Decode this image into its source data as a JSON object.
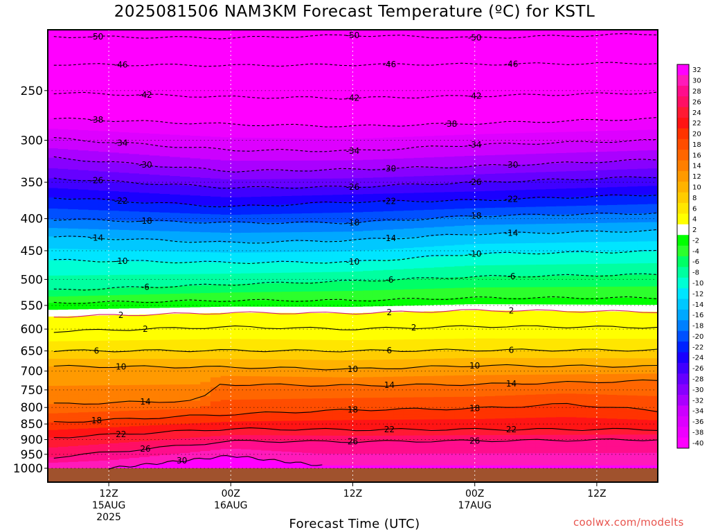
{
  "title": "2025081506 NAM3KM Forecast Temperature (ºC) for KSTL",
  "credit": "coolwx.com/modelts",
  "chart_data": {
    "type": "heatmap",
    "xlabel": "Forecast Time (UTC)",
    "ylabel": "",
    "x_range": [
      "2025-08-15 06Z",
      "2025-08-17 18Z"
    ],
    "y_range_hpa": [
      1000,
      200
    ],
    "y_scale": "log-pressure",
    "grid": true,
    "y_ticks": [
      250,
      300,
      350,
      400,
      450,
      500,
      550,
      600,
      650,
      700,
      750,
      800,
      850,
      900,
      950,
      1000
    ],
    "x_ticks": [
      {
        "time": "2025-08-15 12Z",
        "lines": [
          "12Z",
          "15AUG",
          "2025"
        ]
      },
      {
        "time": "2025-08-16 00Z",
        "lines": [
          "00Z",
          "16AUG"
        ]
      },
      {
        "time": "2025-08-16 12Z",
        "lines": [
          "12Z"
        ]
      },
      {
        "time": "2025-08-17 00Z",
        "lines": [
          "00Z",
          "17AUG"
        ]
      },
      {
        "time": "2025-08-17 12Z",
        "lines": [
          "12Z"
        ]
      }
    ],
    "colorbar_labels": [
      "32",
      "30",
      "28",
      "26",
      "24",
      "22",
      "20",
      "18",
      "16",
      "14",
      "12",
      "10",
      "8",
      "6",
      "4",
      "2",
      "-2",
      "-4",
      "-6",
      "-8",
      "-10",
      "-12",
      "-14",
      "-16",
      "-18",
      "-20",
      "-22",
      "-24",
      "-26",
      "-28",
      "-30",
      "-32",
      "-34",
      "-36",
      "-38",
      "-40"
    ],
    "colorbar_colors": [
      "#ff00ff",
      "#ff1aba",
      "#ff0d8c",
      "#ff0f64",
      "#ff1a33",
      "#ff1414",
      "#ff3300",
      "#ff4d00",
      "#ff6600",
      "#ff7f00",
      "#ff9a00",
      "#ffb300",
      "#ffcc00",
      "#ffe600",
      "#ffff00",
      "#ffffff",
      "#00ff00",
      "#2cff2c",
      "#00ff66",
      "#00ffa0",
      "#00ffd4",
      "#00e5ff",
      "#00c8ff",
      "#00a8ff",
      "#0080ff",
      "#0050ff",
      "#0022ff",
      "#1a00ff",
      "#4000ff",
      "#6600ff",
      "#8800ff",
      "#aa00ff",
      "#cc00ff",
      "#dd00ff",
      "#ee00ff",
      "#ff00ff"
    ],
    "colorbar_boundaries": [
      "-40",
      "-38",
      "-36",
      "-34",
      "-32",
      "-30",
      "-28",
      "-26",
      "-24",
      "-22",
      "-20",
      "-18",
      "-16",
      "-14",
      "-12",
      "-10",
      "-8",
      "-6",
      "-4",
      "-2",
      "0",
      "2",
      "4",
      "6",
      "8",
      "10",
      "12",
      "14",
      "16",
      "18",
      "20",
      "22",
      "24",
      "26",
      "28",
      "30",
      "32"
    ],
    "isotherms": [
      {
        "temp": -50,
        "labels": [
          "-50",
          "-50",
          "-50"
        ],
        "profile": [
          [
            1,
            205
          ],
          [
            30,
            206
          ],
          [
            50,
            204
          ],
          [
            60,
            205
          ],
          [
            70,
            206
          ],
          [
            100,
            203
          ]
        ]
      },
      {
        "temp": -46,
        "labels": [
          "-46",
          "-46",
          "-46"
        ],
        "profile": [
          [
            1,
            227
          ],
          [
            30,
            228
          ],
          [
            60,
            227
          ],
          [
            70,
            227
          ],
          [
            100,
            226
          ]
        ]
      },
      {
        "temp": -42,
        "labels": [
          "-42",
          "-42",
          "-42"
        ],
        "profile": [
          [
            1,
            252
          ],
          [
            30,
            256
          ],
          [
            50,
            257
          ],
          [
            70,
            255
          ],
          [
            100,
            252
          ]
        ]
      },
      {
        "temp": -38,
        "labels": [
          "-38",
          "-38"
        ],
        "profile": [
          [
            1,
            277
          ],
          [
            30,
            283
          ],
          [
            50,
            285
          ],
          [
            70,
            282
          ],
          [
            100,
            277
          ]
        ]
      },
      {
        "temp": -34,
        "labels": [
          "-34",
          "-34",
          "-34"
        ],
        "profile": [
          [
            1,
            298
          ],
          [
            30,
            311
          ],
          [
            50,
            312
          ],
          [
            70,
            305
          ],
          [
            100,
            300
          ]
        ]
      },
      {
        "temp": -30,
        "labels": [
          "-30",
          "-30",
          "-30"
        ],
        "profile": [
          [
            1,
            320
          ],
          [
            30,
            336
          ],
          [
            50,
            334
          ],
          [
            70,
            330
          ],
          [
            100,
            322
          ]
        ]
      },
      {
        "temp": -26,
        "labels": [
          "-26",
          "-26",
          "-26"
        ],
        "profile": [
          [
            1,
            345
          ],
          [
            30,
            357
          ],
          [
            50,
            356
          ],
          [
            70,
            350
          ],
          [
            100,
            343
          ]
        ]
      },
      {
        "temp": -22,
        "labels": [
          "-22",
          "-22",
          "-22"
        ],
        "profile": [
          [
            1,
            370
          ],
          [
            30,
            383
          ],
          [
            50,
            376
          ],
          [
            70,
            374
          ],
          [
            100,
            366
          ]
        ]
      },
      {
        "temp": -18,
        "labels": [
          "-18",
          "-18",
          "-18"
        ],
        "profile": [
          [
            1,
            401
          ],
          [
            30,
            406
          ],
          [
            50,
            406
          ],
          [
            70,
            396
          ],
          [
            100,
            392
          ]
        ]
      },
      {
        "temp": -14,
        "labels": [
          "-14",
          "-14",
          "-14"
        ],
        "profile": [
          [
            1,
            427
          ],
          [
            30,
            437
          ],
          [
            50,
            433
          ],
          [
            70,
            423
          ],
          [
            100,
            418
          ]
        ]
      },
      {
        "temp": -10,
        "labels": [
          "-10",
          "-10",
          "-10"
        ],
        "profile": [
          [
            1,
            466
          ],
          [
            30,
            470
          ],
          [
            50,
            469
          ],
          [
            70,
            455
          ],
          [
            100,
            451
          ]
        ]
      },
      {
        "temp": -6,
        "labels": [
          "-6",
          "-6",
          "-6"
        ],
        "profile": [
          [
            1,
            520
          ],
          [
            30,
            509
          ],
          [
            50,
            503
          ],
          [
            70,
            495
          ],
          [
            100,
            491
          ]
        ]
      },
      {
        "temp": -2,
        "labels": [],
        "profile": [
          [
            1,
            545
          ],
          [
            30,
            540
          ],
          [
            50,
            540
          ],
          [
            70,
            535
          ],
          [
            100,
            535
          ]
        ]
      },
      {
        "temp": 2,
        "labels": [
          "2",
          "2",
          "2"
        ],
        "profile": [
          [
            1,
            573
          ],
          [
            30,
            565
          ],
          [
            50,
            566
          ],
          [
            70,
            560
          ],
          [
            100,
            563
          ]
        ]
      },
      {
        "temp": 2,
        "labels": [
          "2",
          "2"
        ],
        "profile": [
          [
            1,
            605
          ],
          [
            30,
            595
          ],
          [
            50,
            600
          ],
          [
            70,
            594
          ],
          [
            100,
            596
          ]
        ]
      },
      {
        "temp": 6,
        "labels": [
          "6",
          "6",
          "6"
        ],
        "profile": [
          [
            1,
            650
          ],
          [
            30,
            649
          ],
          [
            50,
            650
          ],
          [
            70,
            648
          ],
          [
            100,
            648
          ]
        ]
      },
      {
        "temp": 10,
        "labels": [
          "10",
          "10",
          "10"
        ],
        "profile": [
          [
            1,
            688
          ],
          [
            30,
            690
          ],
          [
            50,
            695
          ],
          [
            70,
            686
          ],
          [
            100,
            688
          ]
        ]
      },
      {
        "temp": 14,
        "labels": [
          "14",
          "14",
          "14"
        ],
        "profile": [
          [
            1,
            790
          ],
          [
            25,
            780
          ],
          [
            28,
            735
          ],
          [
            50,
            738
          ],
          [
            70,
            735
          ],
          [
            100,
            725
          ]
        ]
      },
      {
        "temp": 18,
        "labels": [
          "18",
          "18",
          "18"
        ],
        "profile": [
          [
            1,
            845
          ],
          [
            30,
            820
          ],
          [
            50,
            807
          ],
          [
            70,
            803
          ],
          [
            85,
            790
          ],
          [
            100,
            810
          ]
        ]
      },
      {
        "temp": 22,
        "labels": [
          "22",
          "22",
          "22"
        ],
        "profile": [
          [
            1,
            893
          ],
          [
            30,
            865
          ],
          [
            50,
            868
          ],
          [
            70,
            867
          ],
          [
            100,
            867
          ]
        ]
      },
      {
        "temp": 26,
        "labels": [
          "26",
          "26",
          "26"
        ],
        "profile": [
          [
            1,
            960
          ],
          [
            30,
            905
          ],
          [
            50,
            907
          ],
          [
            70,
            904
          ],
          [
            100,
            900
          ]
        ]
      },
      {
        "temp": 30,
        "labels": [
          "30"
        ],
        "profile": [
          [
            10,
            1000
          ],
          [
            30,
            955
          ],
          [
            45,
            990
          ]
        ]
      }
    ]
  }
}
